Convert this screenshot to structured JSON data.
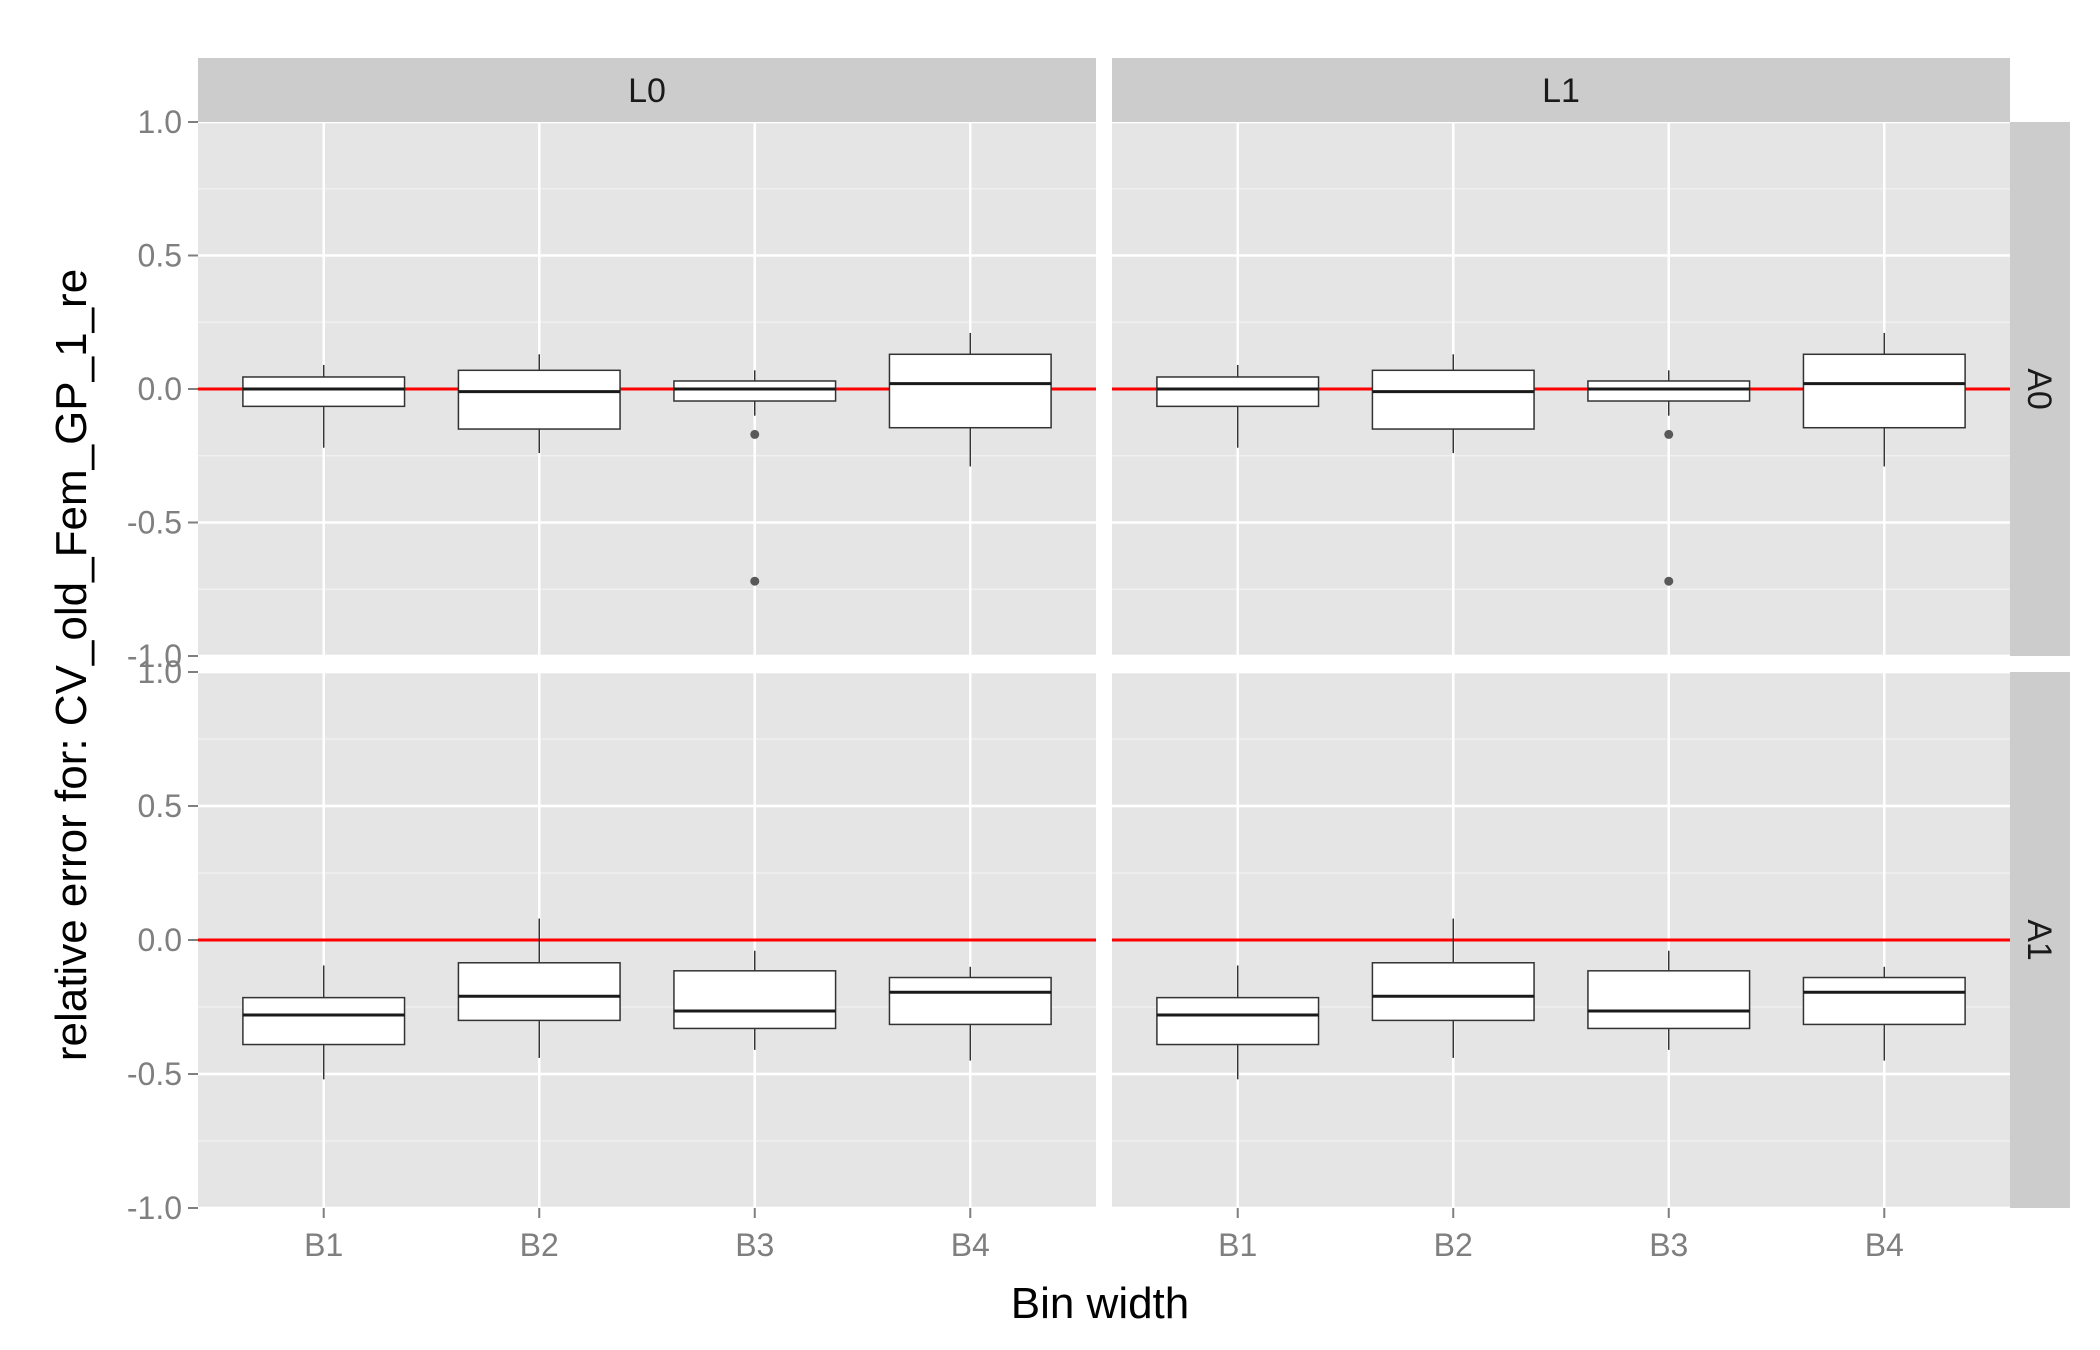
{
  "chart_data": {
    "type": "boxplot",
    "xlabel": "Bin width",
    "ylabel": "relative error for: CV_old_Fem_GP_1_re",
    "ylim": [
      -1.0,
      1.0
    ],
    "yticks": [
      {
        "value": 1.0,
        "label": "1.0"
      },
      {
        "value": 0.5,
        "label": "0.5"
      },
      {
        "value": 0.0,
        "label": "0.0"
      },
      {
        "value": -0.5,
        "label": "-0.5"
      },
      {
        "value": -1.0,
        "label": "-1.0"
      }
    ],
    "categories": [
      "B1",
      "B2",
      "B3",
      "B4"
    ],
    "facet_cols": [
      "L0",
      "L1"
    ],
    "facet_rows": [
      "A0",
      "A1"
    ],
    "reference_line": {
      "y": 0.0,
      "color": "#ff0000"
    },
    "colors": {
      "panel_bg": "#e5e5e5",
      "strip_bg": "#cccccc",
      "grid": "#ffffff",
      "box_fill": "#ffffff",
      "box_line": "#333333",
      "outlier": "#595959"
    },
    "grid": true,
    "panels": [
      {
        "col": "L0",
        "row": "A0",
        "boxes": [
          {
            "cat": "B1",
            "lower_whisker": -0.22,
            "q1": -0.065,
            "median": 0.0,
            "q3": 0.045,
            "upper_whisker": 0.09,
            "outliers": []
          },
          {
            "cat": "B2",
            "lower_whisker": -0.24,
            "q1": -0.15,
            "median": -0.01,
            "q3": 0.07,
            "upper_whisker": 0.13,
            "outliers": []
          },
          {
            "cat": "B3",
            "lower_whisker": -0.1,
            "q1": -0.045,
            "median": 0.0,
            "q3": 0.03,
            "upper_whisker": 0.07,
            "outliers": [
              -0.17,
              -0.72
            ]
          },
          {
            "cat": "B4",
            "lower_whisker": -0.29,
            "q1": -0.145,
            "median": 0.02,
            "q3": 0.13,
            "upper_whisker": 0.21,
            "outliers": []
          }
        ]
      },
      {
        "col": "L1",
        "row": "A0",
        "boxes": [
          {
            "cat": "B1",
            "lower_whisker": -0.22,
            "q1": -0.065,
            "median": 0.0,
            "q3": 0.045,
            "upper_whisker": 0.09,
            "outliers": []
          },
          {
            "cat": "B2",
            "lower_whisker": -0.24,
            "q1": -0.15,
            "median": -0.01,
            "q3": 0.07,
            "upper_whisker": 0.13,
            "outliers": []
          },
          {
            "cat": "B3",
            "lower_whisker": -0.1,
            "q1": -0.045,
            "median": 0.0,
            "q3": 0.03,
            "upper_whisker": 0.07,
            "outliers": [
              -0.17,
              -0.72
            ]
          },
          {
            "cat": "B4",
            "lower_whisker": -0.29,
            "q1": -0.145,
            "median": 0.02,
            "q3": 0.13,
            "upper_whisker": 0.21,
            "outliers": []
          }
        ]
      },
      {
        "col": "L0",
        "row": "A1",
        "boxes": [
          {
            "cat": "B1",
            "lower_whisker": -0.52,
            "q1": -0.39,
            "median": -0.28,
            "q3": -0.215,
            "upper_whisker": -0.095,
            "outliers": []
          },
          {
            "cat": "B2",
            "lower_whisker": -0.44,
            "q1": -0.3,
            "median": -0.21,
            "q3": -0.085,
            "upper_whisker": 0.08,
            "outliers": []
          },
          {
            "cat": "B3",
            "lower_whisker": -0.41,
            "q1": -0.33,
            "median": -0.265,
            "q3": -0.115,
            "upper_whisker": -0.04,
            "outliers": []
          },
          {
            "cat": "B4",
            "lower_whisker": -0.45,
            "q1": -0.315,
            "median": -0.195,
            "q3": -0.14,
            "upper_whisker": -0.1,
            "outliers": []
          }
        ]
      },
      {
        "col": "L1",
        "row": "A1",
        "boxes": [
          {
            "cat": "B1",
            "lower_whisker": -0.52,
            "q1": -0.39,
            "median": -0.28,
            "q3": -0.215,
            "upper_whisker": -0.095,
            "outliers": []
          },
          {
            "cat": "B2",
            "lower_whisker": -0.44,
            "q1": -0.3,
            "median": -0.21,
            "q3": -0.085,
            "upper_whisker": 0.08,
            "outliers": []
          },
          {
            "cat": "B3",
            "lower_whisker": -0.41,
            "q1": -0.33,
            "median": -0.265,
            "q3": -0.115,
            "upper_whisker": -0.04,
            "outliers": []
          },
          {
            "cat": "B4",
            "lower_whisker": -0.45,
            "q1": -0.315,
            "median": -0.195,
            "q3": -0.14,
            "upper_whisker": -0.1,
            "outliers": []
          }
        ]
      }
    ]
  }
}
